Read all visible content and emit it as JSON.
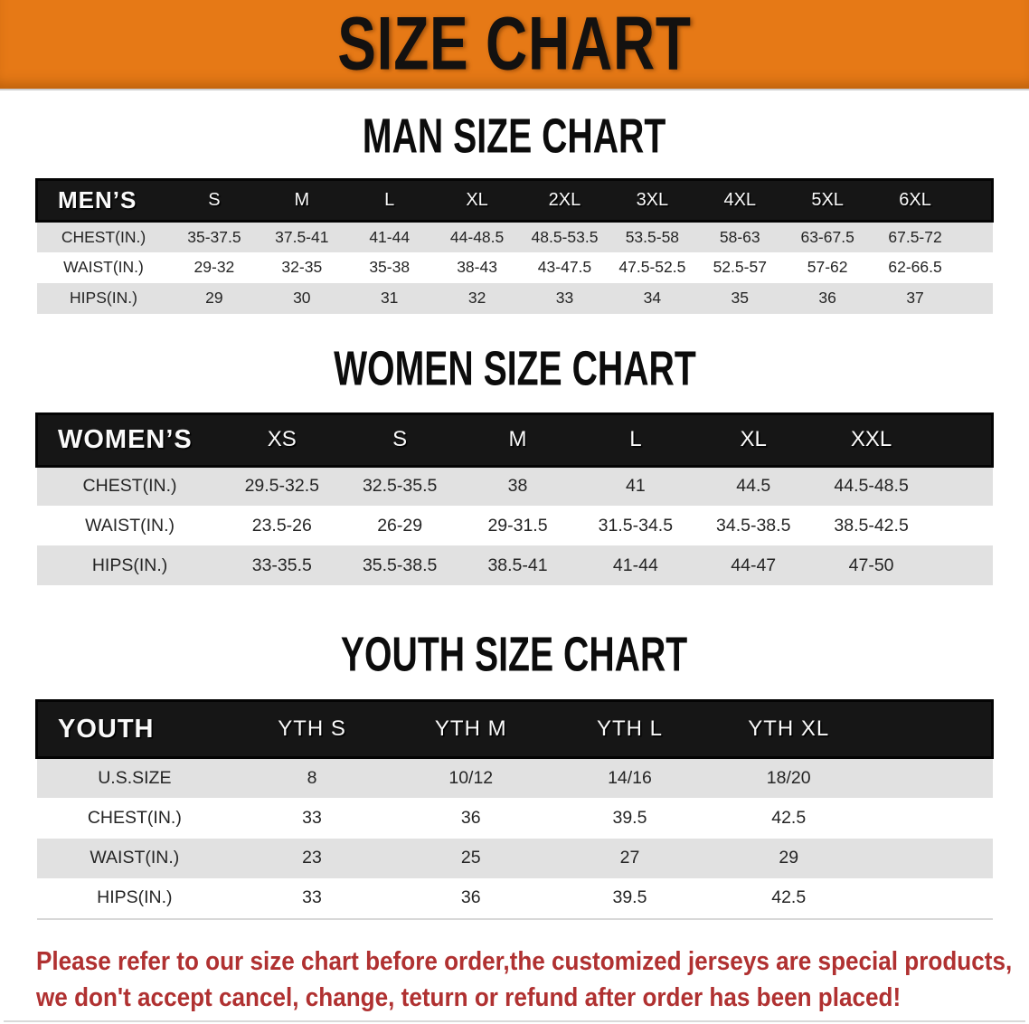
{
  "banner": {
    "title": "SIZE CHART"
  },
  "colors": {
    "banner_bg": "#e67916",
    "header_bg": "#161616",
    "header_text": "#fafafa",
    "row_alt_bg": "#e1e1e1",
    "disclaimer_red": "#b03131"
  },
  "sections": [
    {
      "title": "MAN SIZE CHART",
      "corner_label": "MEN’S",
      "columns": [
        "S",
        "M",
        "L",
        "XL",
        "2XL",
        "3XL",
        "4XL",
        "5XL",
        "6XL"
      ],
      "rows": [
        {
          "label": "CHEST(IN.)",
          "values": [
            "35-37.5",
            "37.5-41",
            "41-44",
            "44-48.5",
            "48.5-53.5",
            "53.5-58",
            "58-63",
            "63-67.5",
            "67.5-72"
          ]
        },
        {
          "label": "WAIST(IN.)",
          "values": [
            "29-32",
            "32-35",
            "35-38",
            "38-43",
            "43-47.5",
            "47.5-52.5",
            "52.5-57",
            "57-62",
            "62-66.5"
          ]
        },
        {
          "label": "HIPS(IN.)",
          "values": [
            "29",
            "30",
            "31",
            "32",
            "33",
            "34",
            "35",
            "36",
            "37"
          ]
        }
      ]
    },
    {
      "title": "WOMEN SIZE CHART",
      "corner_label": "WOMEN’S",
      "columns": [
        "XS",
        "S",
        "M",
        "L",
        "XL",
        "XXL"
      ],
      "rows": [
        {
          "label": "CHEST(IN.)",
          "values": [
            "29.5-32.5",
            "32.5-35.5",
            "38",
            "41",
            "44.5",
            "44.5-48.5"
          ]
        },
        {
          "label": "WAIST(IN.)",
          "values": [
            "23.5-26",
            "26-29",
            "29-31.5",
            "31.5-34.5",
            "34.5-38.5",
            "38.5-42.5"
          ]
        },
        {
          "label": "HIPS(IN.)",
          "values": [
            "33-35.5",
            "35.5-38.5",
            "38.5-41",
            "41-44",
            "44-47",
            "47-50"
          ]
        }
      ]
    },
    {
      "title": "YOUTH SIZE CHART",
      "corner_label": "YOUTH",
      "columns": [
        "YTH S",
        "YTH M",
        "YTH L",
        "YTH XL"
      ],
      "rows": [
        {
          "label": "U.S.SIZE",
          "values": [
            "8",
            "10/12",
            "14/16",
            "18/20"
          ]
        },
        {
          "label": "CHEST(IN.)",
          "values": [
            "33",
            "36",
            "39.5",
            "42.5"
          ]
        },
        {
          "label": "WAIST(IN.)",
          "values": [
            "23",
            "25",
            "27",
            "29"
          ]
        },
        {
          "label": "HIPS(IN.)",
          "values": [
            "33",
            "36",
            "39.5",
            "42.5"
          ]
        }
      ]
    }
  ],
  "disclaimer": {
    "line1": "Please refer to our size chart before order,the customized jerseys are special products,",
    "line2": "we don't accept cancel, change, teturn or refund after order has been placed!"
  }
}
